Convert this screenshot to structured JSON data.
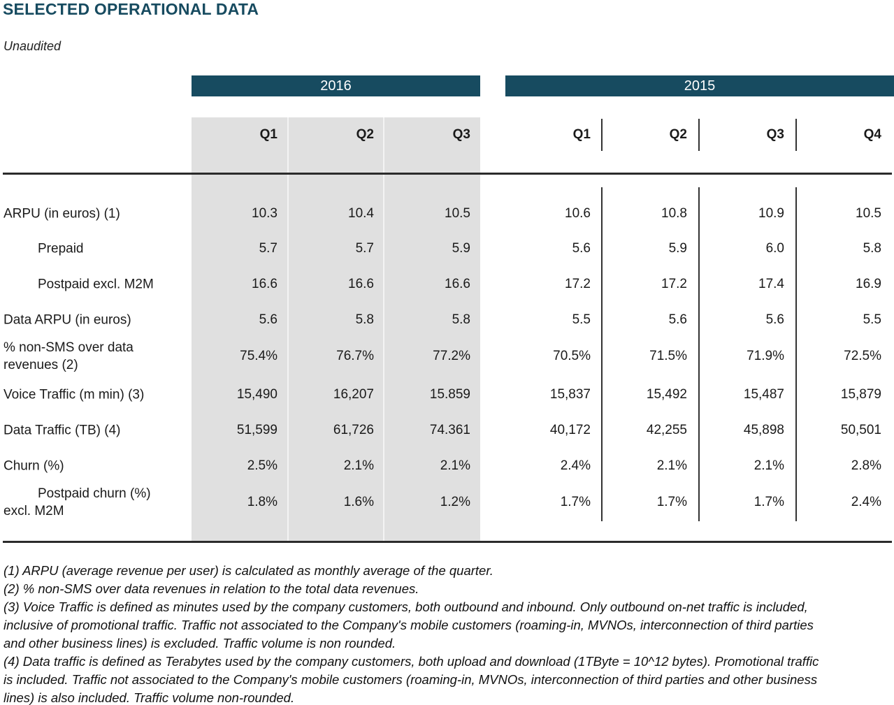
{
  "title": "SELECTED OPERATIONAL DATA",
  "subtitle": "Unaudited",
  "colors": {
    "accent_teal": "#174b60",
    "band_gray": "#e0e0e0",
    "rule": "#2b2b2b"
  },
  "table": {
    "year_headers": [
      "2016",
      "2015"
    ],
    "q2016": [
      "Q1",
      "Q2",
      "Q3"
    ],
    "q2015": [
      "Q1",
      "Q2",
      "Q3",
      "Q4"
    ],
    "rows": [
      {
        "label": "ARPU (in euros) (1)",
        "indent": false,
        "v16": [
          "10.3",
          "10.4",
          "10.5"
        ],
        "v15": [
          "10.6",
          "10.8",
          "10.9",
          "10.5"
        ]
      },
      {
        "label": "Prepaid",
        "indent": true,
        "v16": [
          "5.7",
          "5.7",
          "5.9"
        ],
        "v15": [
          "5.6",
          "5.9",
          "6.0",
          "5.8"
        ]
      },
      {
        "label": "Postpaid excl. M2M",
        "indent": true,
        "v16": [
          "16.6",
          "16.6",
          "16.6"
        ],
        "v15": [
          "17.2",
          "17.2",
          "17.4",
          "16.9"
        ]
      },
      {
        "label": "Data ARPU (in euros)",
        "indent": false,
        "v16": [
          "5.6",
          "5.8",
          "5.8"
        ],
        "v15": [
          "5.5",
          "5.6",
          "5.6",
          "5.5"
        ]
      },
      {
        "label": "% non-SMS over data revenues (2)",
        "indent": false,
        "v16": [
          "75.4%",
          "76.7%",
          "77.2%"
        ],
        "v15": [
          "70.5%",
          "71.5%",
          "71.9%",
          "72.5%"
        ]
      },
      {
        "label": "Voice Traffic (m min) (3)",
        "indent": false,
        "v16": [
          "15,490",
          "16,207",
          "15.859"
        ],
        "v15": [
          "15,837",
          "15,492",
          "15,487",
          "15,879"
        ]
      },
      {
        "label": "Data Traffic (TB) (4)",
        "indent": false,
        "v16": [
          "51,599",
          "61,726",
          "74.361"
        ],
        "v15": [
          "40,172",
          "42,255",
          "45,898",
          "50,501"
        ]
      },
      {
        "label": "Churn (%)",
        "indent": false,
        "v16": [
          "2.5%",
          "2.1%",
          "2.1%"
        ],
        "v15": [
          "2.4%",
          "2.1%",
          "2.1%",
          "2.8%"
        ]
      },
      {
        "label": "Postpaid churn (%) excl. M2M",
        "indent": true,
        "v16": [
          "1.8%",
          "1.6%",
          "1.2%"
        ],
        "v15": [
          "1.7%",
          "1.7%",
          "1.7%",
          "2.4%"
        ]
      }
    ]
  },
  "footnotes": [
    "(1) ARPU (average revenue per user) is calculated as monthly average of the quarter.",
    "(2) % non-SMS over data revenues in relation to the total data revenues.",
    "(3) Voice Traffic is defined as minutes used by the company customers, both outbound and inbound. Only outbound on-net traffic is included, inclusive of promotional traffic. Traffic not associated to the Company's mobile customers (roaming-in, MVNOs, interconnection of third parties and other business lines) is excluded. Traffic volume is non rounded.",
    "(4) Data traffic is defined as Terabytes used by the company customers, both upload and download (1TByte = 10^12 bytes). Promotional traffic is included. Traffic not associated to the Company's mobile customers (roaming-in, MVNOs, interconnection of third parties and other business lines) is also included. Traffic volume non-rounded."
  ]
}
